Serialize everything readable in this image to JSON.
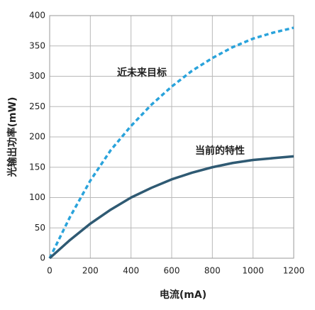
{
  "chart_data": {
    "type": "line",
    "x_label": "电流(mA)",
    "y_label": "光输出功率(mW)",
    "x": [
      0,
      100,
      200,
      300,
      400,
      500,
      600,
      700,
      800,
      900,
      1000,
      1100,
      1200
    ],
    "series": [
      {
        "name": "近未来目标",
        "color": "#2aa3db",
        "dashed": true,
        "values": [
          0,
          68,
          128,
          178,
          218,
          253,
          283,
          309,
          330,
          348,
          362,
          372,
          380
        ]
      },
      {
        "name": "当前的特性",
        "color": "#2f5a73",
        "dashed": false,
        "values": [
          0,
          30,
          57,
          80,
          100,
          116,
          130,
          141,
          150,
          157,
          162,
          165,
          168
        ]
      }
    ],
    "xlim": [
      0,
      1200
    ],
    "xticks": [
      0,
      200,
      400,
      600,
      800,
      1000,
      1200
    ],
    "ylim": [
      0,
      400
    ],
    "yticks": [
      0,
      50,
      100,
      150,
      200,
      250,
      300,
      350,
      400
    ],
    "grid": true
  }
}
